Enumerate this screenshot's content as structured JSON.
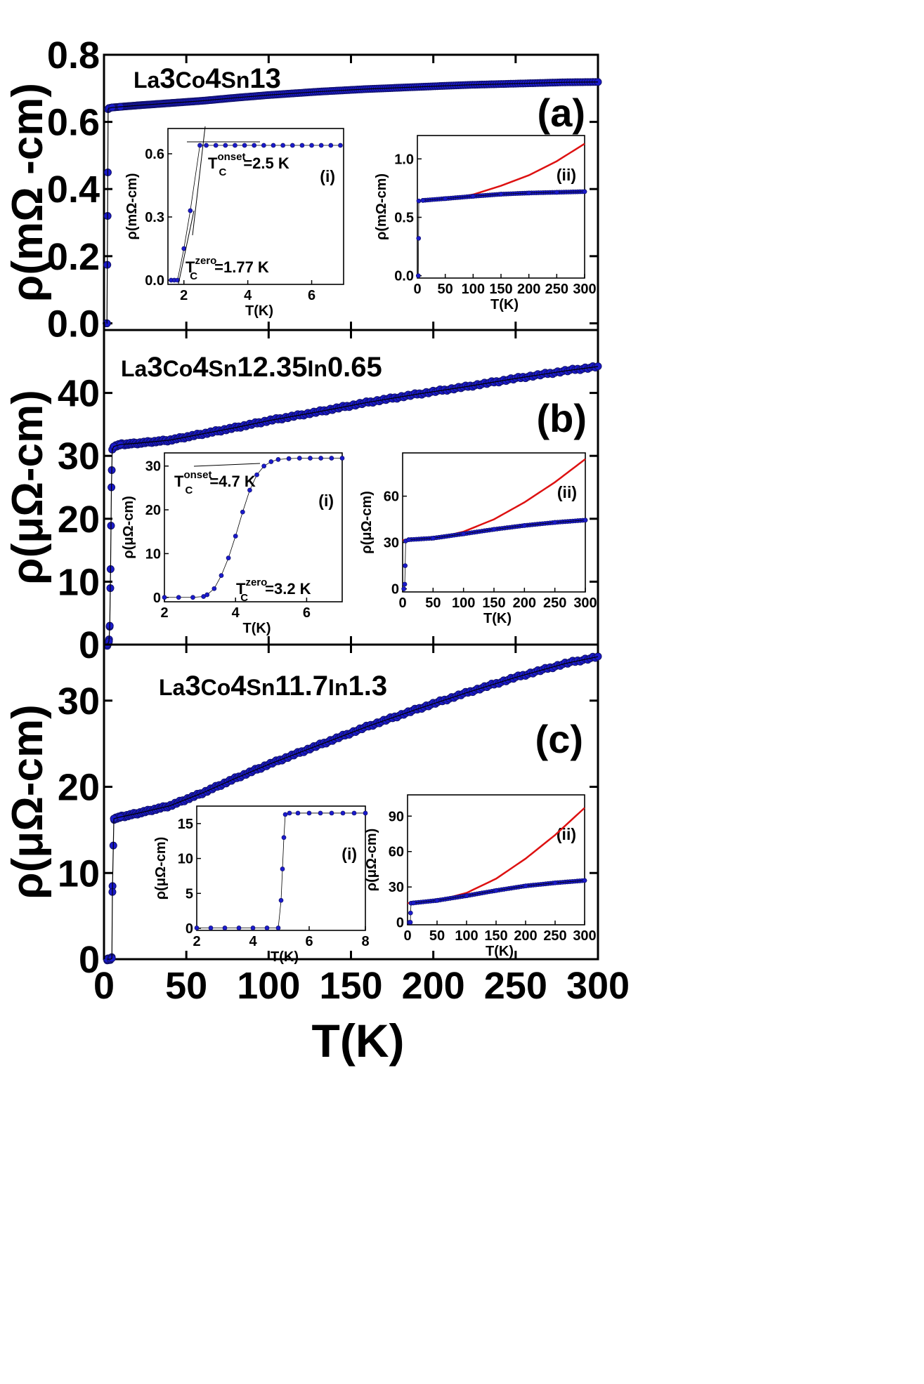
{
  "figure": {
    "xlabel": "T(K)",
    "x_ticks": [
      "0",
      "50",
      "100",
      "150",
      "200",
      "250",
      "300"
    ]
  },
  "chart_data": [
    {
      "panel": "a",
      "type": "scatter",
      "panel_label": "(a)",
      "compound": {
        "prefix": "La",
        "s1": "3",
        "mid1": "Co",
        "s2": "4",
        "mid2": "Sn",
        "s3": "13",
        "mid3": "",
        "s4": ""
      },
      "ylabel": "ρ(mΩ -cm)",
      "xlim": [
        0,
        300
      ],
      "ylim": [
        -0.02,
        0.8
      ],
      "yticks": [
        0.0,
        0.2,
        0.4,
        0.6,
        0.8
      ],
      "ytick_labels": [
        "0.0",
        "0.2",
        "0.4",
        "0.6",
        "0.8"
      ],
      "series": [
        {
          "name": "ρ(T)",
          "color": "#1a1acc",
          "x": [
            1.6,
            1.8,
            2.2,
            2.5,
            3,
            5,
            10,
            20,
            40,
            60,
            80,
            100,
            130,
            160,
            190,
            220,
            250,
            280,
            300
          ],
          "y": [
            0.0,
            0.0,
            0.32,
            0.638,
            0.641,
            0.643,
            0.645,
            0.649,
            0.656,
            0.663,
            0.672,
            0.68,
            0.69,
            0.698,
            0.704,
            0.71,
            0.714,
            0.718,
            0.719
          ]
        }
      ],
      "insets": [
        {
          "id": "i",
          "tag": "(i)",
          "xlabel": "T(K)",
          "ylabel": "ρ(mΩ-cm)",
          "xlim": [
            1.5,
            7
          ],
          "ylim": [
            -0.02,
            0.72
          ],
          "xticks": [
            2,
            4,
            6
          ],
          "xtick_labels": [
            "2",
            "4",
            "6"
          ],
          "yticks": [
            0.0,
            0.3,
            0.6
          ],
          "ytick_labels": [
            "0.0",
            "0.3",
            "0.6"
          ],
          "series": [
            {
              "name": "low-T",
              "color": "#1a1acc",
              "x": [
                1.6,
                1.7,
                1.8,
                2.0,
                2.2,
                2.5,
                2.7,
                3.0,
                3.3,
                3.6,
                3.9,
                4.2,
                4.5,
                4.8,
                5.1,
                5.4,
                5.7,
                6.0,
                6.3,
                6.6,
                6.9
              ],
              "y": [
                0.0,
                0.0,
                0.0,
                0.15,
                0.33,
                0.64,
                0.64,
                0.64,
                0.64,
                0.64,
                0.64,
                0.64,
                0.64,
                0.64,
                0.64,
                0.64,
                0.64,
                0.64,
                0.64,
                0.64,
                0.64
              ]
            }
          ],
          "annotations": [
            {
              "sym": "T",
              "sub": "C",
              "sup": "onset",
              "text": "=2.5 K"
            },
            {
              "sym": "T",
              "sub": "C",
              "sup": "zero",
              "text": "=1.77 K"
            }
          ]
        },
        {
          "id": "ii",
          "tag": "(ii)",
          "xlabel": "T(K)",
          "ylabel": "ρ(mΩ-cm)",
          "xlim": [
            0,
            300
          ],
          "ylim": [
            -0.02,
            1.2
          ],
          "xticks": [
            0,
            50,
            100,
            150,
            200,
            250,
            300
          ],
          "xtick_labels": [
            "0",
            "50",
            "100",
            "150",
            "200",
            "250",
            "300"
          ],
          "yticks": [
            0.0,
            0.5,
            1.0
          ],
          "ytick_labels": [
            "0.0",
            "0.5",
            "1.0"
          ],
          "series": [
            {
              "name": "data",
              "color": "#1a1acc",
              "x": [
                1.6,
                2.2,
                2.5,
                10,
                50,
                100,
                150,
                200,
                250,
                300
              ],
              "y": [
                0.0,
                0.32,
                0.64,
                0.645,
                0.66,
                0.68,
                0.698,
                0.708,
                0.714,
                0.72
              ]
            }
          ],
          "fit": {
            "color": "#dd1111",
            "x": [
              0,
              50,
              100,
              150,
              200,
              250,
              300
            ],
            "y": [
              0.64,
              0.652,
              0.695,
              0.77,
              0.86,
              0.98,
              1.13
            ]
          }
        }
      ]
    },
    {
      "panel": "b",
      "type": "scatter",
      "panel_label": "(b)",
      "compound": {
        "prefix": "La",
        "s1": "3",
        "mid1": "Co",
        "s2": "4",
        "mid2": "Sn",
        "s3": "12.35",
        "mid3": "In",
        "s4": "0.65"
      },
      "ylabel": "ρ(μΩ-cm)",
      "xlim": [
        0,
        300
      ],
      "ylim": [
        0,
        50
      ],
      "yticks": [
        0,
        10,
        20,
        30,
        40
      ],
      "ytick_labels": [
        "0",
        "10",
        "20",
        "30",
        "40"
      ],
      "series": [
        {
          "name": "ρ(T)",
          "color": "#1a1acc",
          "x": [
            2,
            3,
            3.5,
            4,
            4.5,
            5,
            6,
            10,
            20,
            40,
            60,
            80,
            100,
            130,
            160,
            190,
            220,
            250,
            280,
            300
          ],
          "y": [
            0.0,
            0.5,
            3,
            12,
            25,
            31,
            31.5,
            31.8,
            32.0,
            32.5,
            33.5,
            34.5,
            35.6,
            37.0,
            38.5,
            39.8,
            41.0,
            42.3,
            43.5,
            44.2
          ]
        }
      ],
      "insets": [
        {
          "id": "i",
          "tag": "(i)",
          "xlabel": "T(K)",
          "ylabel": "ρ(μΩ-cm)",
          "xlim": [
            2,
            7
          ],
          "ylim": [
            -1,
            33
          ],
          "xticks": [
            2,
            4,
            6
          ],
          "xtick_labels": [
            "2",
            "4",
            "6"
          ],
          "yticks": [
            0,
            10,
            20,
            30
          ],
          "ytick_labels": [
            "0",
            "10",
            "20",
            "30"
          ],
          "series": [
            {
              "name": "low-T",
              "color": "#1a1acc",
              "x": [
                2.0,
                2.4,
                2.8,
                3.1,
                3.2,
                3.4,
                3.6,
                3.8,
                4.0,
                4.2,
                4.4,
                4.6,
                4.8,
                5.0,
                5.2,
                5.5,
                5.8,
                6.1,
                6.4,
                6.7,
                7.0
              ],
              "y": [
                0.0,
                0.0,
                0.0,
                0.2,
                0.6,
                2.0,
                5.0,
                9.0,
                14.0,
                19.5,
                24.5,
                28.0,
                30.0,
                31.0,
                31.5,
                31.7,
                31.8,
                31.8,
                31.8,
                31.8,
                31.8
              ]
            }
          ],
          "annotations": [
            {
              "sym": "T",
              "sub": "C",
              "sup": "onset",
              "text": "=4.7 K"
            },
            {
              "sym": "T",
              "sub": "C",
              "sup": "zero",
              "text": "=3.2 K"
            }
          ]
        },
        {
          "id": "ii",
          "tag": "(ii)",
          "xlabel": "T(K)",
          "ylabel": "ρ(μΩ-cm)",
          "xlim": [
            0,
            300
          ],
          "ylim": [
            -2,
            88
          ],
          "xticks": [
            0,
            50,
            100,
            150,
            200,
            250,
            300
          ],
          "xtick_labels": [
            "0",
            "50",
            "100",
            "150",
            "200",
            "250",
            "300"
          ],
          "yticks": [
            0,
            30,
            60
          ],
          "ytick_labels": [
            "0",
            "30",
            "60"
          ],
          "series": [
            {
              "name": "data",
              "color": "#1a1acc",
              "x": [
                2,
                3.5,
                4.2,
                5,
                10,
                50,
                100,
                150,
                200,
                250,
                300
              ],
              "y": [
                0.0,
                3,
                15,
                31,
                31.8,
                32.8,
                35.6,
                38.5,
                41.0,
                43.0,
                44.5
              ]
            }
          ],
          "fit": {
            "color": "#dd1111",
            "x": [
              0,
              50,
              100,
              150,
              200,
              250,
              300
            ],
            "y": [
              31.5,
              32.3,
              37.0,
              45.0,
              56.0,
              69.0,
              84.0
            ]
          }
        }
      ]
    },
    {
      "panel": "c",
      "type": "scatter",
      "panel_label": "(c)",
      "compound": {
        "prefix": "La",
        "s1": "3",
        "mid1": "Co",
        "s2": "4",
        "mid2": "Sn",
        "s3": "11.7",
        "mid3": "In",
        "s4": "1.3"
      },
      "ylabel": "ρ(μΩ-cm)",
      "xlim": [
        0,
        300
      ],
      "ylim": [
        0,
        36.5
      ],
      "yticks": [
        0,
        10,
        20,
        30
      ],
      "ytick_labels": [
        "0",
        "10",
        "20",
        "30"
      ],
      "series": [
        {
          "name": "ρ(T)",
          "color": "#1a1acc",
          "x": [
            2,
            4,
            4.8,
            5.1,
            6,
            10,
            20,
            40,
            60,
            80,
            100,
            130,
            160,
            190,
            220,
            250,
            280,
            300
          ],
          "y": [
            0.0,
            0.0,
            0.1,
            7.8,
            16.3,
            16.5,
            16.9,
            17.8,
            19.3,
            21.0,
            22.6,
            24.8,
            27.0,
            29.0,
            30.9,
            32.7,
            34.3,
            35.1
          ]
        }
      ],
      "insets": [
        {
          "id": "i",
          "tag": "(i)",
          "xlabel": "T(K)",
          "ylabel": "ρ(μΩ-cm)",
          "xlim": [
            2,
            8
          ],
          "ylim": [
            -0.3,
            17.5
          ],
          "xticks": [
            2,
            4,
            6,
            8
          ],
          "xtick_labels": [
            "2",
            "4",
            "6",
            "8"
          ],
          "yticks": [
            0,
            5,
            10,
            15
          ],
          "ytick_labels": [
            "0",
            "5",
            "10",
            "15"
          ],
          "series": [
            {
              "name": "low-T",
              "color": "#1a1acc",
              "x": [
                2.0,
                2.5,
                3.0,
                3.5,
                4.0,
                4.5,
                4.9,
                5.0,
                5.05,
                5.1,
                5.15,
                5.3,
                5.6,
                6.0,
                6.4,
                6.8,
                7.2,
                7.6,
                8.0
              ],
              "y": [
                0.05,
                0.05,
                0.05,
                0.05,
                0.05,
                0.05,
                0.05,
                4.0,
                8.5,
                13.0,
                16.3,
                16.5,
                16.5,
                16.5,
                16.5,
                16.5,
                16.5,
                16.5,
                16.5
              ]
            }
          ],
          "annotations": []
        },
        {
          "id": "ii",
          "tag": "(ii)",
          "xlabel": "T(K)",
          "ylabel": "ρ(μΩ-cm)",
          "xlim": [
            0,
            300
          ],
          "ylim": [
            -2,
            108
          ],
          "xticks": [
            0,
            50,
            100,
            150,
            200,
            250,
            300
          ],
          "xtick_labels": [
            "0",
            "50",
            "100",
            "150",
            "200",
            "250",
            "300"
          ],
          "yticks": [
            0,
            30,
            60,
            90
          ],
          "ytick_labels": [
            "0",
            "30",
            "60",
            "90"
          ],
          "series": [
            {
              "name": "data",
              "color": "#1a1acc",
              "x": [
                3,
                4.8,
                5.1,
                6,
                10,
                50,
                100,
                150,
                200,
                250,
                300
              ],
              "y": [
                0,
                0.1,
                8,
                16.3,
                16.5,
                18.6,
                22.6,
                27.0,
                30.9,
                33.5,
                35.5
              ]
            }
          ],
          "fit": {
            "color": "#dd1111",
            "x": [
              0,
              50,
              100,
              150,
              200,
              250,
              300
            ],
            "y": [
              16.3,
              18.3,
              25.0,
              37.0,
              54.0,
              74.0,
              97.0
            ]
          }
        }
      ]
    }
  ]
}
